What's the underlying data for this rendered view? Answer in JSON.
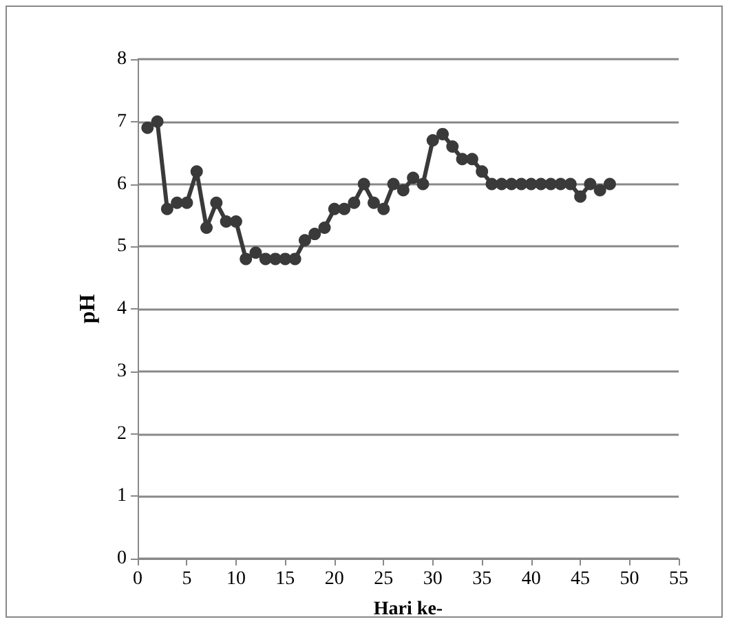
{
  "chart_data": {
    "type": "line",
    "xlabel": "Hari ke-",
    "ylabel": "pH",
    "x": [
      1,
      2,
      3,
      4,
      5,
      6,
      7,
      8,
      9,
      10,
      11,
      12,
      13,
      14,
      15,
      16,
      17,
      18,
      19,
      20,
      21,
      22,
      23,
      24,
      25,
      26,
      27,
      28,
      29,
      30,
      31,
      32,
      33,
      34,
      35,
      36,
      37,
      38,
      39,
      40,
      41,
      42,
      43,
      44,
      45,
      46,
      47,
      48
    ],
    "series": [
      {
        "color": "#3a3a3a",
        "values": [
          6.9,
          7.0,
          5.6,
          5.7,
          5.7,
          6.2,
          5.3,
          5.7,
          5.4,
          5.4,
          4.8,
          4.9,
          4.8,
          4.8,
          4.8,
          4.8,
          5.1,
          5.2,
          5.3,
          5.6,
          5.6,
          5.7,
          6.0,
          5.7,
          5.6,
          6.0,
          5.9,
          6.1,
          6.0,
          6.7,
          6.8,
          6.6,
          6.4,
          6.4,
          6.2,
          6.0,
          6.0,
          6.0,
          6.0,
          6.0,
          6.0,
          6.0,
          6.0,
          6.0,
          5.8,
          6.0,
          5.9,
          6.0
        ]
      }
    ],
    "xlim": [
      0,
      55
    ],
    "xticks": [
      0,
      5,
      10,
      15,
      20,
      25,
      30,
      35,
      40,
      45,
      50,
      55
    ],
    "ylim": [
      0,
      8
    ],
    "yticks": [
      0,
      1,
      2,
      3,
      4,
      5,
      6,
      7,
      8
    ],
    "grid": "y",
    "marker": "circle",
    "line_style": "solid"
  }
}
